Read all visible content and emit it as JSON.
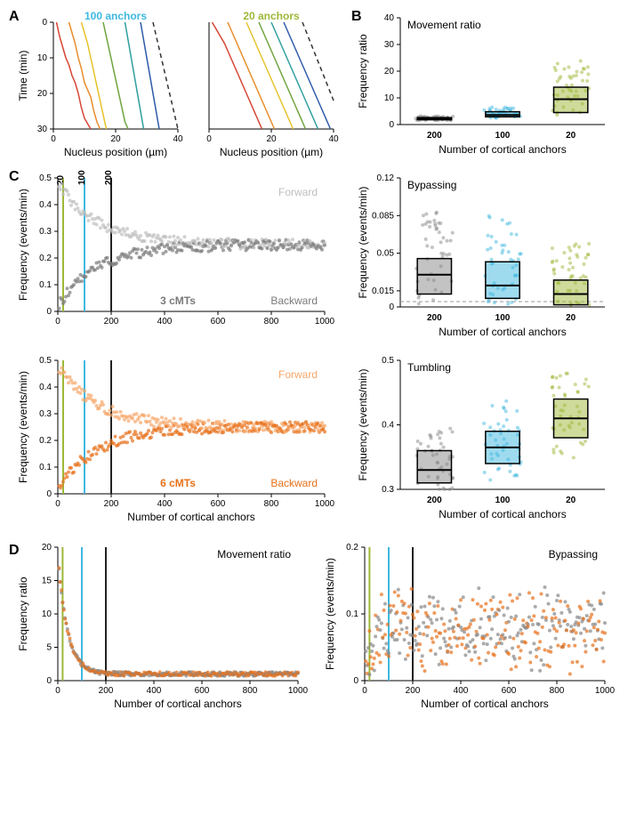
{
  "colors": {
    "c100": "#3fb8e0",
    "c20": "#9eb838",
    "c200": "#222222",
    "gray_fwd": "#bfbfbf",
    "gray_bwd": "#7a7a7a",
    "orange_fwd": "#f7a76a",
    "orange_bwd": "#e7711b",
    "line_red": "#d64533",
    "line_orange": "#e88d2a",
    "line_yellow": "#e6c229",
    "line_green": "#6fa33c",
    "line_teal": "#2f9e9e",
    "line_blue": "#2e5aa8",
    "dash": "#333333",
    "bg": "#ffffff",
    "box_stroke": "#000000",
    "box_fill_dark": "#888888",
    "box_fill_cyan": "#3fb8e0",
    "box_fill_olive": "#9eb838",
    "dashed_ref": "#999999"
  },
  "panelA": {
    "title100": "100 anchors",
    "title20": "20 anchors",
    "xlabel": "Nucleus position (µm)",
    "ylabel": "Time (min)",
    "xlim": [
      0,
      40
    ],
    "ylim": [
      0,
      30
    ],
    "xticks": [
      0,
      20,
      40
    ],
    "yticks": [
      0,
      10,
      20,
      30
    ],
    "lines100": [
      {
        "color": "line_red",
        "pts": [
          [
            1,
            0
          ],
          [
            2,
            4
          ],
          [
            3,
            7
          ],
          [
            4,
            10
          ],
          [
            5,
            12
          ],
          [
            6,
            15
          ],
          [
            7,
            17
          ],
          [
            8,
            20
          ],
          [
            9,
            24
          ],
          [
            10,
            27
          ],
          [
            12,
            30
          ]
        ]
      },
      {
        "color": "line_orange",
        "pts": [
          [
            5,
            0
          ],
          [
            6,
            3
          ],
          [
            7,
            6
          ],
          [
            8,
            10
          ],
          [
            9,
            13
          ],
          [
            10,
            17
          ],
          [
            12,
            21
          ],
          [
            13,
            25
          ],
          [
            14,
            28
          ],
          [
            15,
            30
          ]
        ]
      },
      {
        "color": "line_yellow",
        "pts": [
          [
            9,
            0
          ],
          [
            10,
            3
          ],
          [
            11,
            6
          ],
          [
            12,
            10
          ],
          [
            13,
            14
          ],
          [
            14,
            18
          ],
          [
            15,
            22
          ],
          [
            16,
            26
          ],
          [
            17,
            30
          ]
        ]
      },
      {
        "color": "line_green",
        "pts": [
          [
            16,
            0
          ],
          [
            17,
            4
          ],
          [
            18,
            8
          ],
          [
            19,
            12
          ],
          [
            20,
            16
          ],
          [
            21,
            20
          ],
          [
            22,
            24
          ],
          [
            23,
            28
          ],
          [
            24,
            30
          ]
        ]
      },
      {
        "color": "line_teal",
        "pts": [
          [
            23,
            0
          ],
          [
            24,
            5
          ],
          [
            25,
            10
          ],
          [
            26,
            15
          ],
          [
            27,
            20
          ],
          [
            28,
            25
          ],
          [
            29,
            30
          ]
        ]
      },
      {
        "color": "line_blue",
        "pts": [
          [
            28,
            0
          ],
          [
            29,
            5
          ],
          [
            30,
            10
          ],
          [
            31,
            15
          ],
          [
            32,
            20
          ],
          [
            33,
            25
          ],
          [
            34,
            30
          ]
        ]
      }
    ],
    "dash100": [
      [
        32,
        0
      ],
      [
        40,
        30
      ]
    ],
    "lines20": [
      {
        "color": "line_red",
        "pts": [
          [
            1,
            0
          ],
          [
            3,
            3
          ],
          [
            5,
            6
          ],
          [
            7,
            10
          ],
          [
            9,
            14
          ],
          [
            11,
            18
          ],
          [
            13,
            22
          ],
          [
            15,
            26
          ],
          [
            17,
            30
          ]
        ]
      },
      {
        "color": "line_orange",
        "pts": [
          [
            6,
            0
          ],
          [
            8,
            4
          ],
          [
            10,
            8
          ],
          [
            12,
            12
          ],
          [
            14,
            16
          ],
          [
            16,
            20
          ],
          [
            18,
            24
          ],
          [
            20,
            28
          ],
          [
            21,
            30
          ]
        ]
      },
      {
        "color": "line_yellow",
        "pts": [
          [
            12,
            0
          ],
          [
            14,
            4
          ],
          [
            16,
            8
          ],
          [
            18,
            12
          ],
          [
            20,
            16
          ],
          [
            22,
            20
          ],
          [
            24,
            24
          ],
          [
            26,
            28
          ],
          [
            27,
            30
          ]
        ]
      },
      {
        "color": "line_green",
        "pts": [
          [
            16,
            0
          ],
          [
            18,
            4
          ],
          [
            20,
            8
          ],
          [
            22,
            12
          ],
          [
            24,
            16
          ],
          [
            26,
            20
          ],
          [
            28,
            24
          ],
          [
            30,
            28
          ],
          [
            31,
            30
          ]
        ]
      },
      {
        "color": "line_teal",
        "pts": [
          [
            20,
            0
          ],
          [
            22,
            4
          ],
          [
            24,
            8
          ],
          [
            26,
            12
          ],
          [
            28,
            16
          ],
          [
            30,
            20
          ],
          [
            32,
            24
          ],
          [
            34,
            28
          ],
          [
            35,
            30
          ]
        ]
      },
      {
        "color": "line_blue",
        "pts": [
          [
            24,
            0
          ],
          [
            26,
            4
          ],
          [
            28,
            8
          ],
          [
            30,
            12
          ],
          [
            32,
            16
          ],
          [
            34,
            20
          ],
          [
            36,
            24
          ],
          [
            38,
            28
          ],
          [
            39,
            30
          ]
        ]
      }
    ],
    "dash20": [
      [
        30,
        0
      ],
      [
        40,
        22
      ]
    ]
  },
  "panelB": {
    "movement": {
      "title": "Movement ratio",
      "ylabel": "Frequency ratio",
      "xlabel": "Number of cortical anchors",
      "ylim": [
        0,
        40
      ],
      "yticks": [
        0,
        10,
        20,
        30,
        40
      ],
      "cats": [
        "200",
        "100",
        "20"
      ],
      "cat_colors": [
        "c200",
        "c100",
        "c20"
      ],
      "boxes": [
        {
          "q1": 1.8,
          "med": 2.1,
          "q3": 2.6,
          "fill": "box_fill_dark"
        },
        {
          "q1": 2.9,
          "med": 3.6,
          "q3": 4.8,
          "fill": "box_fill_cyan"
        },
        {
          "q1": 4.5,
          "med": 9.5,
          "q3": 14,
          "fill": "box_fill_olive"
        }
      ],
      "jitter_ranges": [
        {
          "min": 1.5,
          "max": 3.2
        },
        {
          "min": 2.4,
          "max": 6.5
        },
        {
          "min": 3.5,
          "max": 24
        }
      ]
    },
    "bypassing": {
      "title": "Bypassing",
      "ylabel": "Frequency (events/min)",
      "xlabel": "Number of cortical anchors",
      "ylim": [
        0,
        0.12
      ],
      "yticks": [
        0,
        0.015,
        0.05,
        0.085,
        0.12
      ],
      "ref_line": 0.005,
      "cats": [
        "200",
        "100",
        "20"
      ],
      "cat_colors": [
        "c200",
        "c100",
        "c20"
      ],
      "boxes": [
        {
          "q1": 0.012,
          "med": 0.03,
          "q3": 0.045,
          "fill": "box_fill_dark"
        },
        {
          "q1": 0.008,
          "med": 0.02,
          "q3": 0.042,
          "fill": "box_fill_cyan"
        },
        {
          "q1": 0.002,
          "med": 0.012,
          "q3": 0.025,
          "fill": "box_fill_olive"
        }
      ],
      "jitter_ranges": [
        {
          "min": 0,
          "max": 0.09
        },
        {
          "min": 0,
          "max": 0.085
        },
        {
          "min": 0,
          "max": 0.06
        }
      ]
    },
    "tumbling": {
      "title": "Tumbling",
      "ylabel": "Frequency (events/min)",
      "xlabel": "Number of cortical anchors",
      "ylim": [
        0.3,
        0.5
      ],
      "yticks": [
        0.3,
        0.4,
        0.5
      ],
      "cats": [
        "200",
        "100",
        "20"
      ],
      "cat_colors": [
        "c200",
        "c100",
        "c20"
      ],
      "boxes": [
        {
          "q1": 0.31,
          "med": 0.33,
          "q3": 0.36,
          "fill": "box_fill_dark"
        },
        {
          "q1": 0.34,
          "med": 0.365,
          "q3": 0.39,
          "fill": "box_fill_cyan"
        },
        {
          "q1": 0.38,
          "med": 0.41,
          "q3": 0.44,
          "fill": "box_fill_olive"
        }
      ],
      "jitter_ranges": [
        {
          "min": 0.3,
          "max": 0.4
        },
        {
          "min": 0.31,
          "max": 0.44
        },
        {
          "min": 0.34,
          "max": 0.48
        }
      ]
    }
  },
  "panelC": {
    "xlabel": "Number of cortical anchors",
    "ylabel": "Frequency (events/min)",
    "xlim": [
      0,
      1000
    ],
    "ylim": [
      0,
      0.5
    ],
    "yticks": [
      0,
      0.1,
      0.2,
      0.3,
      0.4,
      0.5
    ],
    "xticks": [
      0,
      200,
      400,
      600,
      800,
      1000
    ],
    "vlines": [
      {
        "x": 20,
        "color": "c20",
        "label": "20"
      },
      {
        "x": 100,
        "color": "c100",
        "label": "100"
      },
      {
        "x": 200,
        "color": "c200",
        "label": "200"
      }
    ],
    "label_fwd": "Forward",
    "label_bwd": "Backward",
    "label_3cmts": "3 cMTs",
    "label_6cmts": "6 cMTs"
  },
  "panelD": {
    "movement": {
      "title": "Movement ratio",
      "xlabel": "Number of cortical anchors",
      "ylabel": "Frequency ratio",
      "xlim": [
        0,
        1000
      ],
      "ylim": [
        0,
        20
      ],
      "yticks": [
        0,
        5,
        10,
        15,
        20
      ],
      "xticks": [
        0,
        200,
        400,
        600,
        800,
        1000
      ],
      "vlines": [
        {
          "x": 20,
          "color": "c20"
        },
        {
          "x": 100,
          "color": "c100"
        },
        {
          "x": 200,
          "color": "c200"
        }
      ]
    },
    "bypassing": {
      "title": "Bypassing",
      "xlabel": "Number of cortical anchors",
      "ylabel": "Frequency (events/min)",
      "xlim": [
        0,
        1000
      ],
      "ylim": [
        0,
        0.2
      ],
      "yticks": [
        0,
        0.1,
        0.2
      ],
      "xticks": [
        0,
        200,
        400,
        600,
        800,
        1000
      ],
      "vlines": [
        {
          "x": 20,
          "color": "c20"
        },
        {
          "x": 100,
          "color": "c100"
        },
        {
          "x": 200,
          "color": "c200"
        }
      ]
    }
  },
  "labels": {
    "A": "A",
    "B": "B",
    "C": "C",
    "D": "D"
  }
}
